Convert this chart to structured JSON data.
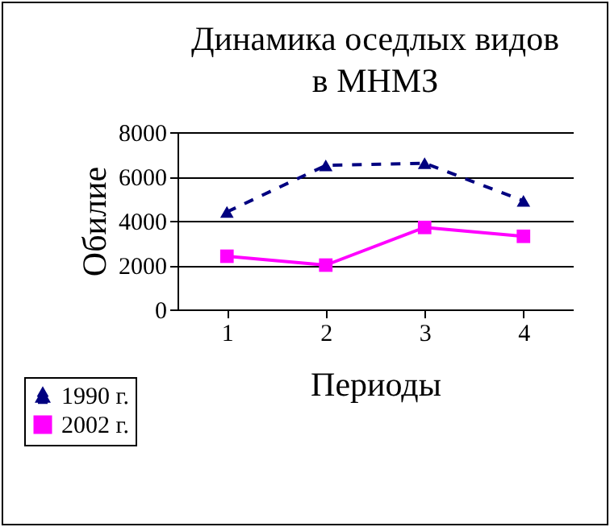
{
  "chart_data": {
    "type": "line",
    "title": "Динамика оседлых видов\nв МНМЗ",
    "xlabel": "Периоды",
    "ylabel": "Обилие",
    "categories": [
      "1",
      "2",
      "3",
      "4"
    ],
    "series": [
      {
        "name": "1990 г.",
        "color": "#000080",
        "values": [
          4400,
          6500,
          6600,
          4900
        ],
        "marker": "triangle",
        "line_style": "dashed"
      },
      {
        "name": "2002 г.",
        "color": "#ff00ff",
        "values": [
          2400,
          2000,
          3700,
          3300
        ],
        "marker": "square",
        "line_style": "solid"
      }
    ],
    "ylim": [
      0,
      8000
    ],
    "yticks": [
      0,
      2000,
      4000,
      6000,
      8000
    ],
    "grid": "y",
    "legend": "bottom left"
  }
}
